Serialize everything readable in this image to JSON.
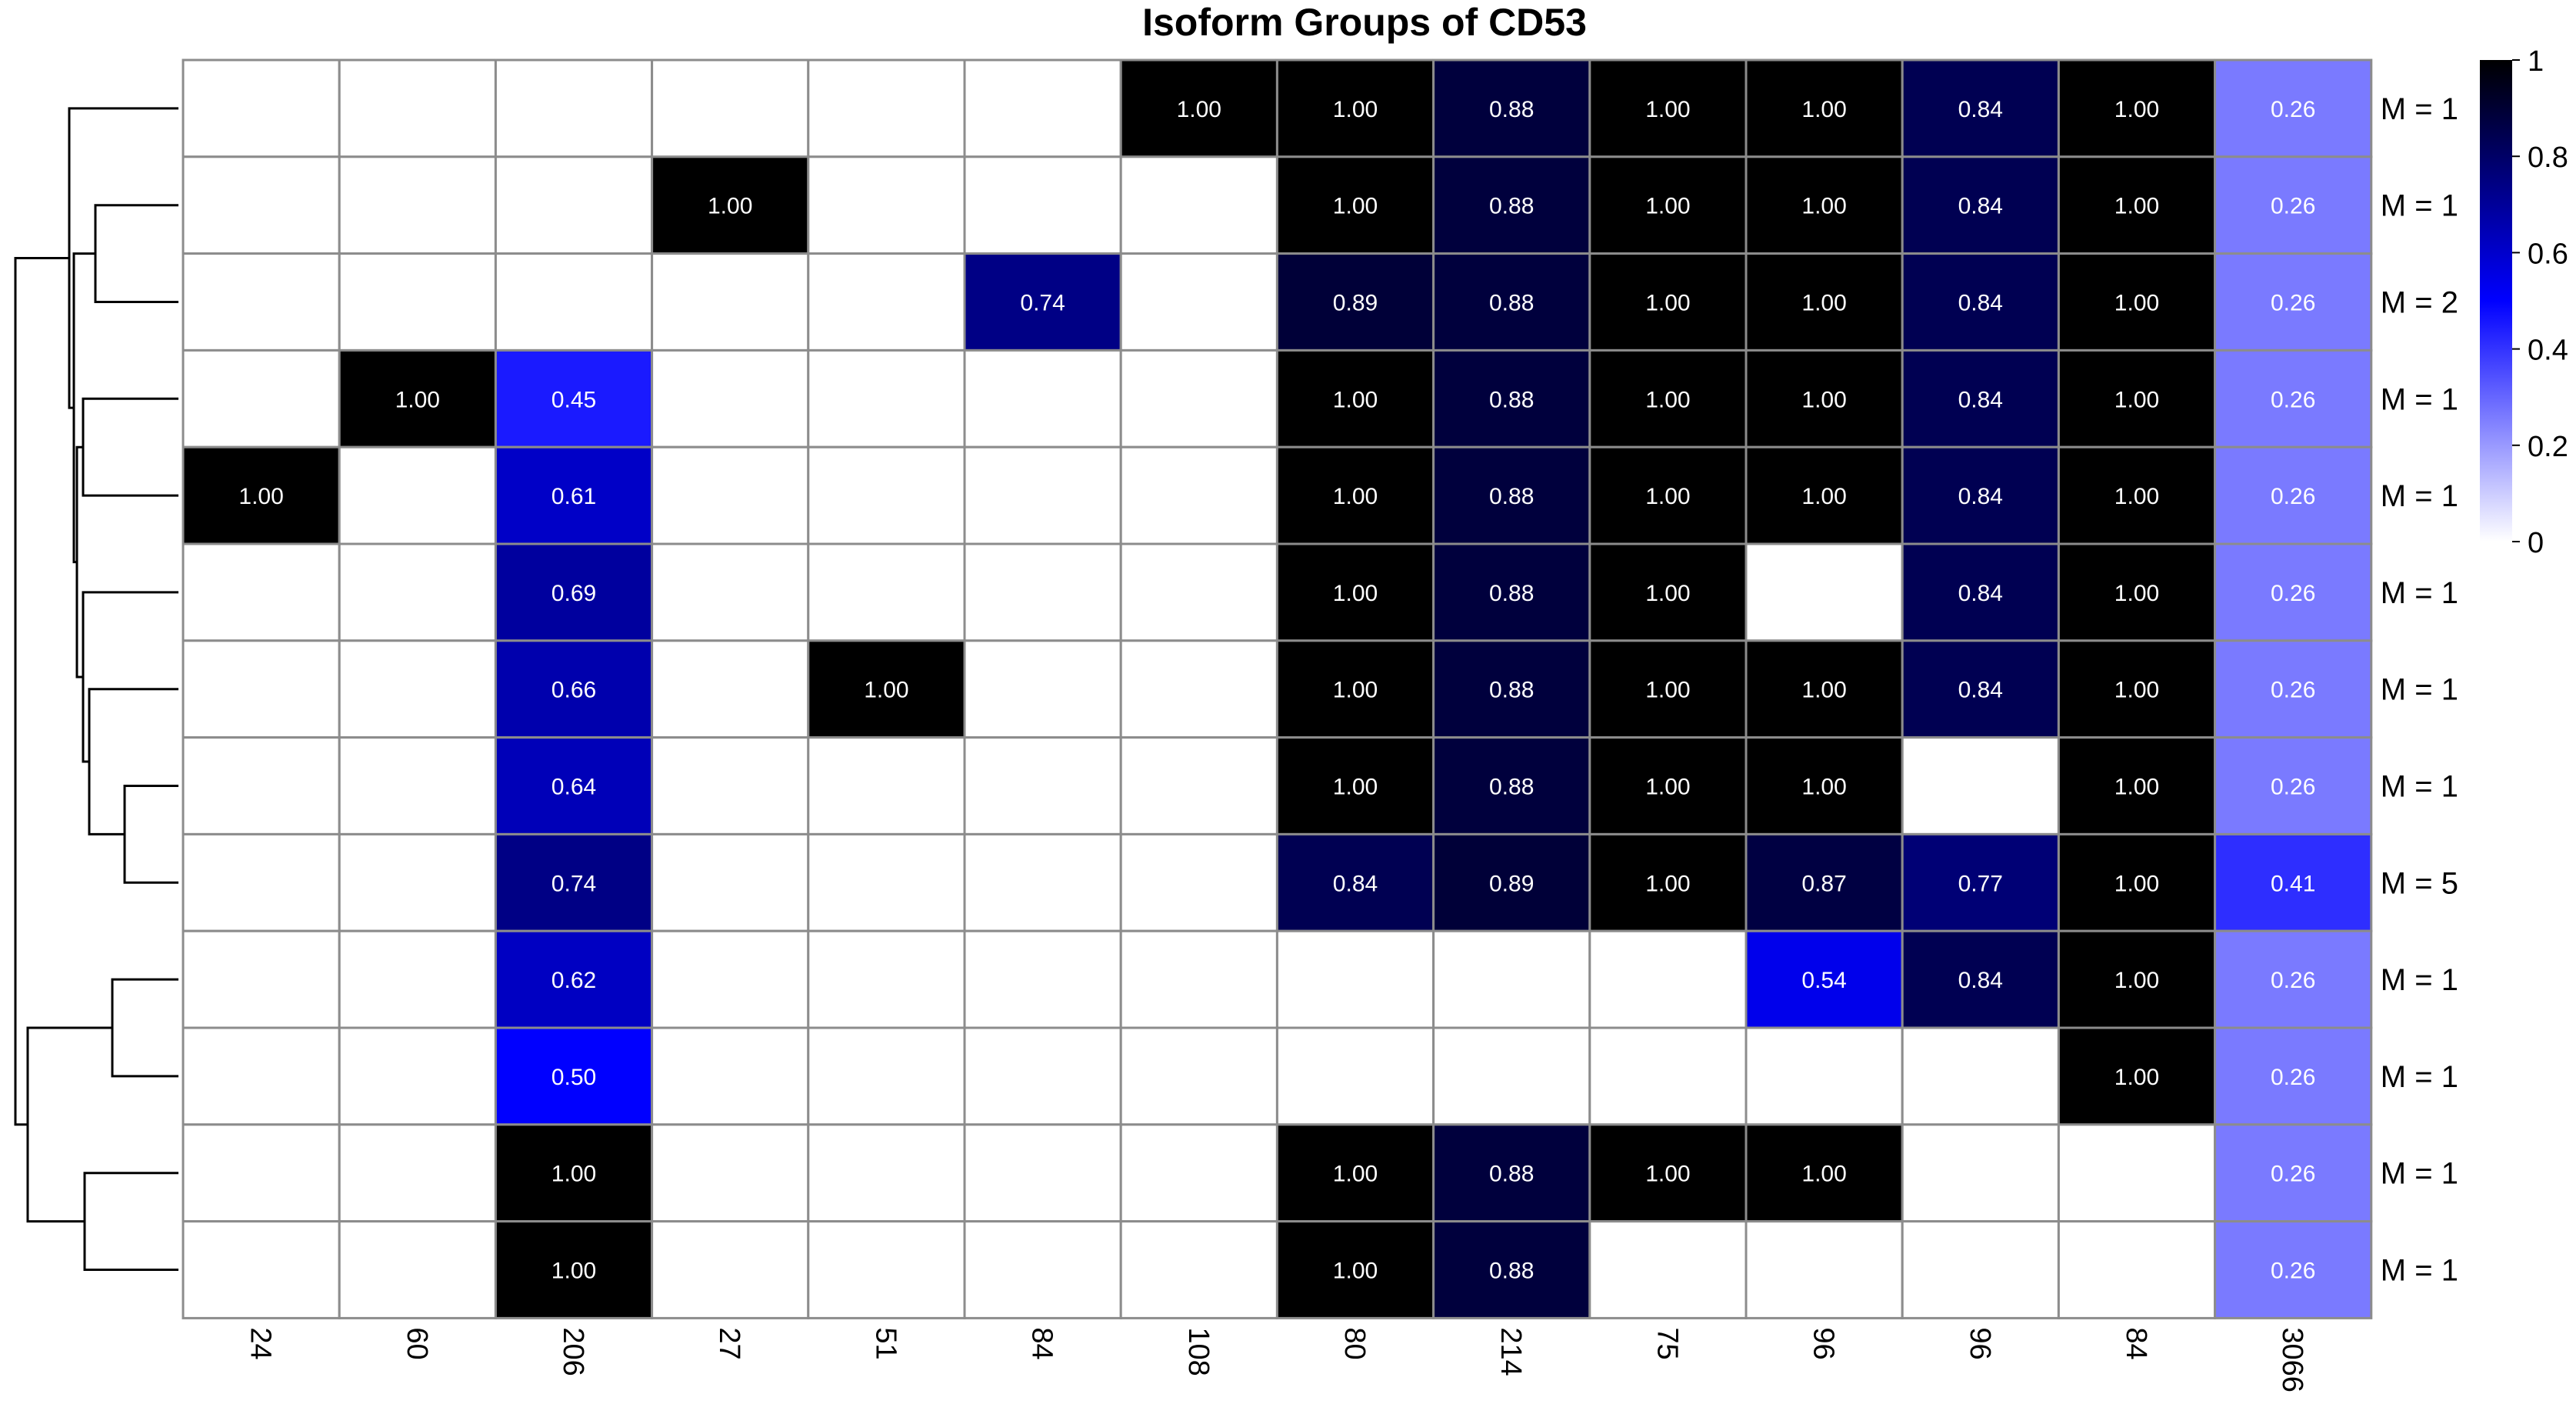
{
  "chart_data": {
    "type": "heatmap",
    "title": "Isoform Groups of CD53",
    "columns": [
      "24",
      "60",
      "206",
      "27",
      "51",
      "84",
      "108",
      "80",
      "214",
      "75",
      "96",
      "96",
      "84",
      "3066"
    ],
    "rows": [
      "M = 1",
      "M = 1",
      "M = 2",
      "M = 1",
      "M = 1",
      "M = 1",
      "M = 1",
      "M = 1",
      "M = 5",
      "M = 1",
      "M = 1",
      "M = 1",
      "M = 1"
    ],
    "values": [
      [
        null,
        null,
        null,
        null,
        null,
        null,
        1.0,
        1.0,
        0.88,
        1.0,
        1.0,
        0.84,
        1.0,
        0.26
      ],
      [
        null,
        null,
        null,
        1.0,
        null,
        null,
        null,
        1.0,
        0.88,
        1.0,
        1.0,
        0.84,
        1.0,
        0.26
      ],
      [
        null,
        null,
        null,
        null,
        null,
        0.74,
        null,
        0.89,
        0.88,
        1.0,
        1.0,
        0.84,
        1.0,
        0.26
      ],
      [
        null,
        1.0,
        0.45,
        null,
        null,
        null,
        null,
        1.0,
        0.88,
        1.0,
        1.0,
        0.84,
        1.0,
        0.26
      ],
      [
        1.0,
        null,
        0.61,
        null,
        null,
        null,
        null,
        1.0,
        0.88,
        1.0,
        1.0,
        0.84,
        1.0,
        0.26
      ],
      [
        null,
        null,
        0.69,
        null,
        null,
        null,
        null,
        1.0,
        0.88,
        1.0,
        null,
        0.84,
        1.0,
        0.26
      ],
      [
        null,
        null,
        0.66,
        null,
        1.0,
        null,
        null,
        1.0,
        0.88,
        1.0,
        1.0,
        0.84,
        1.0,
        0.26
      ],
      [
        null,
        null,
        0.64,
        null,
        null,
        null,
        null,
        1.0,
        0.88,
        1.0,
        1.0,
        null,
        1.0,
        0.26
      ],
      [
        null,
        null,
        0.74,
        null,
        null,
        null,
        null,
        0.84,
        0.89,
        1.0,
        0.87,
        0.77,
        1.0,
        0.41
      ],
      [
        null,
        null,
        0.62,
        null,
        null,
        null,
        null,
        null,
        null,
        null,
        0.54,
        0.84,
        1.0,
        0.26
      ],
      [
        null,
        null,
        0.5,
        null,
        null,
        null,
        null,
        null,
        null,
        null,
        null,
        null,
        1.0,
        0.26
      ],
      [
        null,
        null,
        1.0,
        null,
        null,
        null,
        null,
        1.0,
        0.88,
        1.0,
        1.0,
        null,
        null,
        0.26
      ],
      [
        null,
        null,
        1.0,
        null,
        null,
        null,
        null,
        1.0,
        0.88,
        null,
        null,
        null,
        null,
        0.26
      ]
    ],
    "value_range": [
      0,
      1
    ],
    "colorscale": [
      "#ffffff",
      "#0000ff",
      "#000000"
    ],
    "legend": {
      "placement": "top-right",
      "ticks": [
        "1",
        "0.8",
        "0.6",
        "0.4",
        "0.2",
        "0"
      ]
    },
    "dendrogram": "rows",
    "grid": true
  }
}
